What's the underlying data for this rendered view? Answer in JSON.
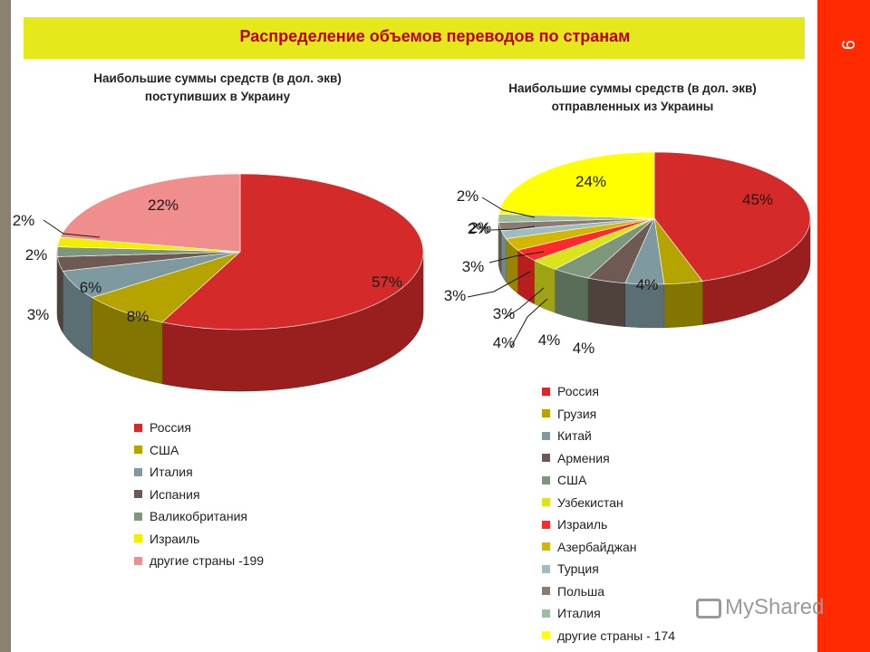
{
  "slide": {
    "title": "Распределение объемов переводов по странам",
    "page_number": "9",
    "watermark": "MyShared"
  },
  "chart_data": [
    {
      "type": "pie",
      "title": "Наибольшие суммы средств (в дол. экв) поступивших в Украину",
      "title_lines": [
        "Наибольшие суммы средств (в дол. экв)",
        "поступивших  в Украину"
      ],
      "slices": [
        {
          "name": "Россия",
          "value": 57,
          "label": "57%",
          "color": "#d42a2a"
        },
        {
          "name": "США",
          "value": 8,
          "label": "8%",
          "color": "#b5a400"
        },
        {
          "name": "Италия",
          "value": 6,
          "label": "6%",
          "color": "#7e99a0"
        },
        {
          "name": "Испания",
          "value": 3,
          "label": "3%",
          "color": "#6e5a52"
        },
        {
          "name": "Валикобритания",
          "value": 2,
          "label": "2%",
          "color": "#7c977b"
        },
        {
          "name": "Израиль",
          "value": 2,
          "label": "2%",
          "color": "#f2ee00"
        },
        {
          "name": "другие страны -199",
          "value": 22,
          "label": "22%",
          "color": "#f08d8d"
        }
      ]
    },
    {
      "type": "pie",
      "title": "Наибольшие суммы средств (в дол. экв) отправленных из Украины",
      "title_lines": [
        "Наибольшие суммы средств (в дол. экв)",
        "отправленных  из Украины"
      ],
      "slices": [
        {
          "name": "Россия",
          "value": 45,
          "label": "45%",
          "color": "#d42a2a"
        },
        {
          "name": "Грузия",
          "value": 4,
          "label": "4%",
          "color": "#b5a400"
        },
        {
          "name": "Китай",
          "value": 4,
          "label": "4%",
          "color": "#7e99a0"
        },
        {
          "name": "Армения",
          "value": 4,
          "label": "4%",
          "color": "#6e5a52"
        },
        {
          "name": "США",
          "value": 4,
          "label": "4%",
          "color": "#7c977b"
        },
        {
          "name": "Узбекистан",
          "value": 3,
          "label": "3%",
          "color": "#dbe31a"
        },
        {
          "name": "Израиль",
          "value": 3,
          "label": "3%",
          "color": "#ff2a2a"
        },
        {
          "name": "Азербайджан",
          "value": 3,
          "label": "3%",
          "color": "#d4b800"
        },
        {
          "name": "Турция",
          "value": 2,
          "label": "2%",
          "color": "#9fbcc0"
        },
        {
          "name": "Польша",
          "value": 2,
          "label": "2%",
          "color": "#8b7a72"
        },
        {
          "name": "Италия",
          "value": 2,
          "label": "2%",
          "color": "#a0bd9f"
        },
        {
          "name": "другие страны - 174",
          "value": 24,
          "label": "24%",
          "color": "#ffff00"
        }
      ]
    }
  ]
}
